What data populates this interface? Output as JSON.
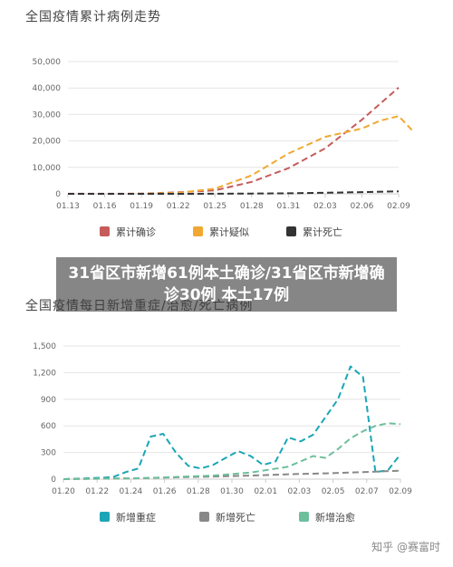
{
  "headline": "31省区市新增61例本土确诊/31省区市新增确诊30例 本土17例",
  "watermark": "知乎 @赛富时",
  "chart_data": [
    {
      "type": "line",
      "title": "全国疫情累计病例走势",
      "x": [
        "01.13",
        "01.16",
        "01.19",
        "01.22",
        "01.25",
        "01.28",
        "01.31",
        "02.03",
        "02.06",
        "02.09"
      ],
      "ylim": [
        0,
        50000
      ],
      "yticks": [
        "0",
        "10,000",
        "20,000",
        "30,000",
        "40,000",
        "50,000"
      ],
      "grid": true,
      "legend_position": "bottom",
      "series": [
        {
          "name": "累计确诊",
          "color": "#c65b5b",
          "points": [
            [
              0,
              41
            ],
            [
              1,
              45
            ],
            [
              2,
              62
            ],
            [
              3,
              571
            ],
            [
              4,
              1287
            ],
            [
              5,
              4515
            ],
            [
              6,
              9692
            ],
            [
              7,
              17205
            ],
            [
              8,
              28018
            ],
            [
              9,
              40171
            ]
          ]
        },
        {
          "name": "累计疑似",
          "color": "#f0a830",
          "points": [
            [
              0,
              0
            ],
            [
              1,
              0
            ],
            [
              2,
              30
            ],
            [
              3,
              393
            ],
            [
              4,
              1965
            ],
            [
              5,
              6973
            ],
            [
              6,
              15238
            ],
            [
              7,
              21558
            ],
            [
              8,
              24702
            ],
            [
              8.5,
              27657
            ],
            [
              9,
              29400
            ],
            [
              9.4,
              23589
            ]
          ]
        },
        {
          "name": "累计死亡",
          "color": "#333333",
          "points": [
            [
              0,
              1
            ],
            [
              1,
              2
            ],
            [
              2,
              3
            ],
            [
              3,
              17
            ],
            [
              4,
              41
            ],
            [
              5,
              106
            ],
            [
              6,
              213
            ],
            [
              7,
              425
            ],
            [
              8,
              638
            ],
            [
              9,
              908
            ]
          ]
        }
      ]
    },
    {
      "type": "line",
      "title": "全国疫情每日新增重症/治愈/死亡病例",
      "x": [
        "01.20",
        "01.22",
        "01.24",
        "01.26",
        "01.28",
        "01.30",
        "02.01",
        "02.03",
        "02.05",
        "02.07",
        "02.09"
      ],
      "ylim": [
        0,
        1500
      ],
      "yticks": [
        "0",
        "300",
        "600",
        "900",
        "1,200",
        "1,500"
      ],
      "grid": true,
      "legend_position": "bottom",
      "series": [
        {
          "name": "新增重症",
          "color": "#1aa6b7",
          "points": [
            [
              0,
              0
            ],
            [
              1,
              5
            ],
            [
              2,
              10
            ],
            [
              3,
              15
            ],
            [
              4,
              25
            ],
            [
              5,
              80
            ],
            [
              6,
              120
            ],
            [
              7,
              480
            ],
            [
              8,
              510
            ],
            [
              9,
              300
            ],
            [
              10,
              150
            ],
            [
              11,
              120
            ],
            [
              12,
              160
            ],
            [
              13,
              240
            ],
            [
              14,
              315
            ],
            [
              15,
              260
            ],
            [
              16,
              160
            ],
            [
              17,
              200
            ],
            [
              18,
              470
            ],
            [
              19,
              425
            ],
            [
              20,
              500
            ],
            [
              21,
              700
            ],
            [
              22,
              900
            ],
            [
              23,
              1270
            ],
            [
              24,
              1150
            ],
            [
              25,
              80
            ],
            [
              26,
              100
            ],
            [
              27,
              280
            ]
          ]
        },
        {
          "name": "新增死亡",
          "color": "#888888",
          "points": [
            [
              0,
              0
            ],
            [
              3,
              5
            ],
            [
              6,
              10
            ],
            [
              9,
              20
            ],
            [
              12,
              30
            ],
            [
              15,
              40
            ],
            [
              18,
              55
            ],
            [
              21,
              65
            ],
            [
              24,
              80
            ],
            [
              27,
              95
            ]
          ]
        },
        {
          "name": "新增治愈",
          "color": "#6dbf9b",
          "points": [
            [
              0,
              0
            ],
            [
              3,
              5
            ],
            [
              6,
              10
            ],
            [
              9,
              25
            ],
            [
              12,
              40
            ],
            [
              15,
              75
            ],
            [
              18,
              140
            ],
            [
              19,
              200
            ],
            [
              20,
              260
            ],
            [
              21,
              240
            ],
            [
              22,
              340
            ],
            [
              23,
              460
            ],
            [
              24,
              540
            ],
            [
              25,
              600
            ],
            [
              26,
              630
            ],
            [
              27,
              620
            ]
          ]
        }
      ]
    }
  ]
}
